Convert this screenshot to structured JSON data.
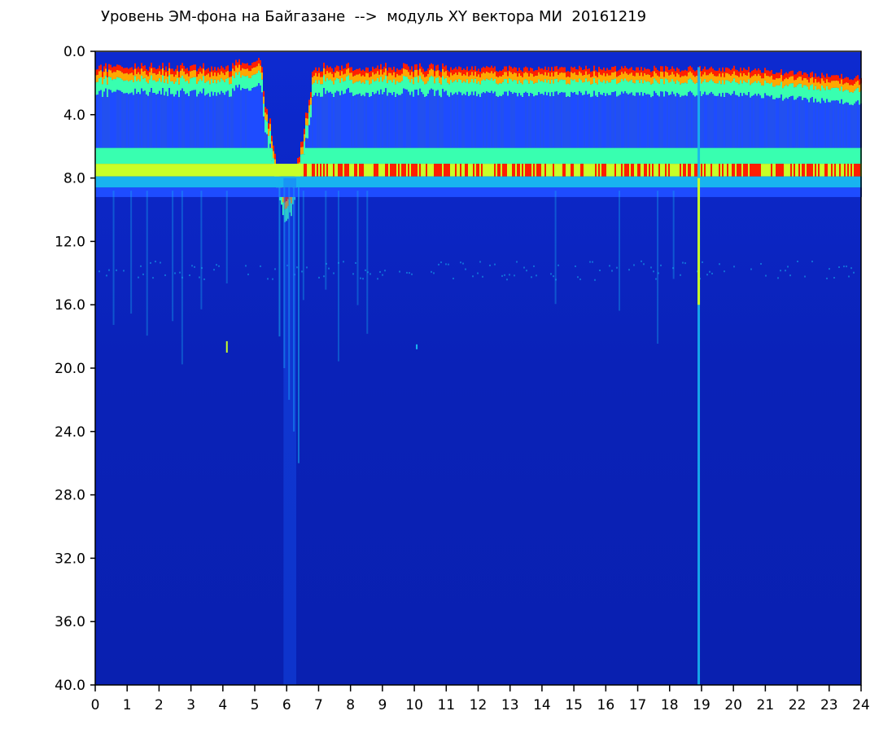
{
  "chart_data": {
    "type": "heatmap",
    "title": "Уровень ЭМ-фона на Байгазане  -->  модуль XY вектора МИ  20161219",
    "xlabel": "",
    "ylabel": "",
    "xlim": [
      0,
      24
    ],
    "ylim": [
      0,
      40
    ],
    "y_inverted": true,
    "x_ticks": [
      0,
      1,
      2,
      3,
      4,
      5,
      6,
      7,
      8,
      9,
      10,
      11,
      12,
      13,
      14,
      15,
      16,
      17,
      18,
      19,
      20,
      21,
      22,
      23,
      24
    ],
    "y_ticks": [
      0,
      4,
      8,
      12,
      16,
      20,
      24,
      28,
      32,
      36,
      40
    ],
    "y_tick_labels": [
      "0.0",
      "4.0",
      "8.0",
      "12.0",
      "16.0",
      "20.0",
      "24.0",
      "28.0",
      "32.0",
      "36.0",
      "40.0"
    ],
    "x_tick_labels": [
      "0",
      "1",
      "2",
      "3",
      "4",
      "5",
      "6",
      "7",
      "8",
      "9",
      "10",
      "11",
      "12",
      "13",
      "14",
      "15",
      "16",
      "17",
      "18",
      "19",
      "20",
      "21",
      "22",
      "23",
      "24"
    ],
    "colormap": [
      "#0a1fb0",
      "#1e4cff",
      "#18b4f0",
      "#38ffb0",
      "#c8ff28",
      "#ffa800",
      "#ff1e00"
    ],
    "background_color": "#0a1fb0",
    "grid": false,
    "legend": "none",
    "features": {
      "data_onset_x": 0.0,
      "band_low_y": 1.0,
      "band_intense_y": 7.5,
      "band_bottom_y": 8.6,
      "faint_band_y": 13.8,
      "gap_center_x": 6.0,
      "spike_x": 18.9
    }
  }
}
